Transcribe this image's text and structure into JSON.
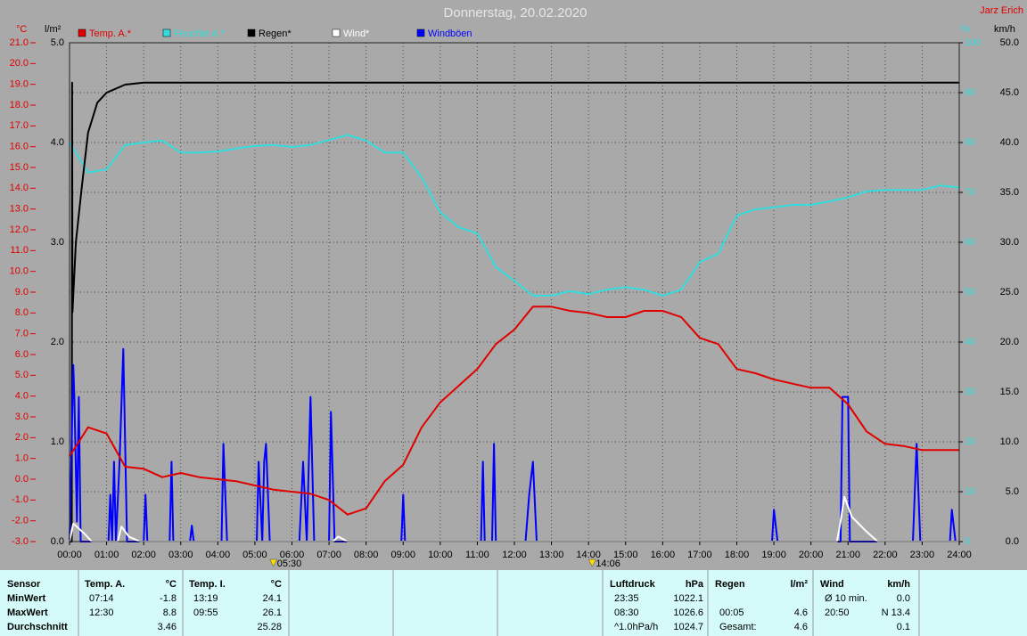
{
  "chart_data": {
    "type": "line",
    "title": "Donnerstag, 20.02.2020",
    "author": "Jarz Erich",
    "ylabel": "°C",
    "y2label": "l/m²",
    "y3label": "%",
    "y4label": "km/h",
    "legend": "top",
    "grid": true,
    "xlim": [
      0,
      24
    ],
    "xticks": [
      {
        "value": 0,
        "label": "00:00"
      },
      {
        "value": 1,
        "label": "01:00"
      },
      {
        "value": 2,
        "label": "02:00"
      },
      {
        "value": 3,
        "label": "03:00"
      },
      {
        "value": 4,
        "label": "04:00"
      },
      {
        "value": 5,
        "label": "05:00"
      },
      {
        "value": 6,
        "label": "06:00"
      },
      {
        "value": 7,
        "label": "07:00"
      },
      {
        "value": 8,
        "label": "08:00"
      },
      {
        "value": 9,
        "label": "09:00"
      },
      {
        "value": 10,
        "label": "10:00"
      },
      {
        "value": 11,
        "label": "11:00"
      },
      {
        "value": 12,
        "label": "12:00"
      },
      {
        "value": 13,
        "label": "13:00"
      },
      {
        "value": 14,
        "label": "14:00"
      },
      {
        "value": 15,
        "label": "15:00"
      },
      {
        "value": 16,
        "label": "16:00"
      },
      {
        "value": 17,
        "label": "17:00"
      },
      {
        "value": 18,
        "label": "18:00"
      },
      {
        "value": 19,
        "label": "19:00"
      },
      {
        "value": 20,
        "label": "20:00"
      },
      {
        "value": 21,
        "label": "21:00"
      },
      {
        "value": 22,
        "label": "22:00"
      },
      {
        "value": 23,
        "label": "23:00"
      },
      {
        "value": 24,
        "label": "24:00"
      }
    ],
    "ylim": [
      -3,
      21
    ],
    "yticks": [
      {
        "value": -3,
        "label": "-3.0"
      },
      {
        "value": -2,
        "label": "-2.0"
      },
      {
        "value": -1,
        "label": "-1.0"
      },
      {
        "value": 0,
        "label": "0.0"
      },
      {
        "value": 1,
        "label": "1.0"
      },
      {
        "value": 2,
        "label": "2.0"
      },
      {
        "value": 3,
        "label": "3.0"
      },
      {
        "value": 4,
        "label": "4.0"
      },
      {
        "value": 5,
        "label": "5.0"
      },
      {
        "value": 6,
        "label": "6.0"
      },
      {
        "value": 7,
        "label": "7.0"
      },
      {
        "value": 8,
        "label": "8.0"
      },
      {
        "value": 9,
        "label": "9.0"
      },
      {
        "value": 10,
        "label": "10.0"
      },
      {
        "value": 11,
        "label": "11.0"
      },
      {
        "value": 12,
        "label": "12.0"
      },
      {
        "value": 13,
        "label": "13.0"
      },
      {
        "value": 14,
        "label": "14.0"
      },
      {
        "value": 15,
        "label": "15.0"
      },
      {
        "value": 16,
        "label": "16.0"
      },
      {
        "value": 17,
        "label": "17.0"
      },
      {
        "value": 18,
        "label": "18.0"
      },
      {
        "value": 19,
        "label": "19.0"
      },
      {
        "value": 20,
        "label": "20.0"
      },
      {
        "value": 21,
        "label": "21.0"
      }
    ],
    "y2lim": [
      0,
      5
    ],
    "y2ticks": [
      {
        "value": 0,
        "label": "0.0"
      },
      {
        "value": 1,
        "label": "1.0"
      },
      {
        "value": 2,
        "label": "2.0"
      },
      {
        "value": 3,
        "label": "3.0"
      },
      {
        "value": 4,
        "label": "4.0"
      },
      {
        "value": 5,
        "label": "5.0"
      }
    ],
    "y3lim": [
      0,
      100
    ],
    "y3ticks": [
      0,
      10,
      20,
      30,
      40,
      50,
      60,
      70,
      80,
      90,
      100
    ],
    "y4lim": [
      0,
      50
    ],
    "y4ticks": [
      {
        "value": 0,
        "label": "0.0"
      },
      {
        "value": 5,
        "label": "5.0"
      },
      {
        "value": 10,
        "label": "10.0"
      },
      {
        "value": 15,
        "label": "15.0"
      },
      {
        "value": 20,
        "label": "20.0"
      },
      {
        "value": 25,
        "label": "25.0"
      },
      {
        "value": 30,
        "label": "30.0"
      },
      {
        "value": 35,
        "label": "35.0"
      },
      {
        "value": 40,
        "label": "40.0"
      },
      {
        "value": 45,
        "label": "45.0"
      },
      {
        "value": 50,
        "label": "50.0"
      }
    ],
    "series": [
      {
        "name": "Temp. A.*",
        "color": "#e00000",
        "axis": "y",
        "x": [
          0,
          0.5,
          1,
          1.5,
          2,
          2.5,
          3,
          3.5,
          4,
          4.5,
          5,
          5.5,
          6,
          6.5,
          7,
          7.5,
          8,
          8.5,
          9,
          9.5,
          10,
          10.5,
          11,
          11.5,
          12,
          12.5,
          13,
          13.5,
          14,
          14.5,
          15,
          15.5,
          16,
          16.5,
          17,
          17.5,
          18,
          18.5,
          19,
          19.5,
          20,
          20.5,
          21,
          21.5,
          22,
          22.5,
          23,
          23.5,
          24
        ],
        "values": [
          1.1,
          2.5,
          2.2,
          0.6,
          0.5,
          0.1,
          0.3,
          0.1,
          0.0,
          -0.1,
          -0.3,
          -0.5,
          -0.6,
          -0.7,
          -1.0,
          -1.7,
          -1.4,
          -0.1,
          0.7,
          2.5,
          3.7,
          4.5,
          5.3,
          6.5,
          7.2,
          8.3,
          8.3,
          8.1,
          8.0,
          7.8,
          7.8,
          8.1,
          8.1,
          7.8,
          6.8,
          6.5,
          5.3,
          5.1,
          4.8,
          4.6,
          4.4,
          4.4,
          3.6,
          2.3,
          1.7,
          1.6,
          1.4,
          1.4,
          1.4
        ]
      },
      {
        "name": "Feuchte A.*",
        "color": "#33dddd",
        "axis": "y3",
        "x": [
          0,
          0.5,
          1,
          1.5,
          2,
          2.5,
          3,
          3.5,
          4,
          4.5,
          5,
          5.5,
          6,
          6.5,
          7,
          7.5,
          8,
          8.5,
          9,
          9.5,
          10,
          10.5,
          11,
          11.5,
          12,
          12.5,
          13,
          13.5,
          14,
          14.5,
          15,
          15.5,
          16,
          16.5,
          17,
          17.5,
          18,
          18.5,
          19,
          19.5,
          20,
          20.5,
          21,
          21.5,
          22,
          22.5,
          23,
          23.5,
          24
        ],
        "values": [
          80,
          74,
          74.6,
          79.5,
          80,
          80.4,
          78,
          78,
          78.2,
          78.8,
          79.3,
          79.5,
          79.1,
          79.5,
          80.5,
          81.5,
          80.4,
          78,
          78,
          73,
          66,
          63,
          61.8,
          55,
          52.3,
          49.3,
          49.3,
          50.2,
          49.6,
          50.5,
          51,
          50.5,
          49.3,
          50.5,
          56,
          57.7,
          65.4,
          66.6,
          67,
          67.5,
          67.5,
          68.2,
          69,
          70.2,
          70.5,
          70.5,
          70.5,
          71.4,
          71
        ]
      },
      {
        "name": "Regen*",
        "color": "#000000",
        "axis": "y2",
        "x": [
          0,
          0.06,
          0.07,
          0.08,
          0.17,
          0.33,
          0.5,
          0.75,
          1,
          1.5,
          2,
          24
        ],
        "values": [
          0,
          0,
          4.6,
          2.3,
          3.0,
          3.55,
          4.1,
          4.4,
          4.5,
          4.58,
          4.6,
          4.6
        ]
      },
      {
        "name": "Wind*",
        "color": "#ffffff",
        "axis": "y4",
        "x": [
          0,
          0.1,
          0.4,
          0.6,
          1.3,
          1.4,
          1.6,
          1.9,
          7.1,
          7.25,
          7.5,
          20.7,
          20.8,
          20.9,
          21.1,
          21.5,
          21.8,
          24
        ],
        "values": [
          0,
          1.8,
          0.8,
          0,
          0,
          1.5,
          0.5,
          0,
          0,
          0.5,
          0,
          0,
          2,
          4.5,
          2.5,
          1,
          0,
          0
        ]
      },
      {
        "name": "Windböen",
        "color": "#0000ff",
        "axis": "y4",
        "x": [
          0,
          0.1,
          0.13,
          0.2,
          0.25,
          0.3,
          1.05,
          1.1,
          1.15,
          1.2,
          1.25,
          1.35,
          1.45,
          1.55,
          1.65,
          2.0,
          2.05,
          2.1,
          2.7,
          2.75,
          2.8,
          3.25,
          3.3,
          3.35,
          4.1,
          4.15,
          4.25,
          5.05,
          5.1,
          5.2,
          5.25,
          5.3,
          5.4,
          5.5,
          6.2,
          6.3,
          6.4,
          6.5,
          6.6,
          7.0,
          7.05,
          7.15,
          7.25,
          8.95,
          9.0,
          9.05,
          11.1,
          11.15,
          11.2,
          11.4,
          11.45,
          11.5,
          12.3,
          12.4,
          12.5,
          12.6,
          12.65,
          12.75,
          18.95,
          19.0,
          19.1,
          20.8,
          20.85,
          21.0,
          21.05,
          22.75,
          22.85,
          22.95,
          23.75,
          23.8,
          23.9,
          24
        ],
        "values": [
          0,
          17.7,
          14.5,
          2,
          14.5,
          0,
          0,
          4.7,
          0,
          8,
          0,
          8,
          19.3,
          0,
          0,
          0,
          4.7,
          0,
          0,
          8,
          0,
          0,
          1.6,
          0,
          0,
          9.8,
          0,
          0,
          8,
          0,
          8,
          9.8,
          0,
          0,
          0,
          8,
          0,
          14.5,
          0,
          0,
          13,
          0,
          0,
          0,
          4.7,
          0,
          0,
          8,
          0,
          0,
          9.8,
          0,
          0,
          4.7,
          8,
          0,
          0,
          0,
          0,
          3.2,
          0,
          0,
          14.5,
          14.5,
          0,
          0,
          9.8,
          0,
          0,
          3.2,
          0,
          0
        ]
      }
    ],
    "annotations": [
      {
        "x": 5.5,
        "label": "05:30"
      },
      {
        "x": 14.1,
        "label": "14:06"
      }
    ]
  },
  "summary": {
    "row_labels": [
      "Sensor",
      "MinWert",
      "MaxWert",
      "Durchschnitt"
    ],
    "groups": [
      {
        "name": "Temp. A.",
        "unit": "°C",
        "min": {
          "time": "07:14",
          "value": "-1.8"
        },
        "max": {
          "time": "12:30",
          "value": "8.8"
        },
        "avg": {
          "value": "3.46"
        }
      },
      {
        "name": "Temp. I.",
        "unit": "°C",
        "min": {
          "time": "13:19",
          "value": "24.1"
        },
        "max": {
          "time": "09:55",
          "value": "26.1"
        },
        "avg": {
          "value": "25.28"
        }
      },
      {
        "name": "Luftdruck",
        "unit": "hPa",
        "min": {
          "time": "23:35",
          "value": "1022.1"
        },
        "max": {
          "time": "08:30",
          "value": "1026.6"
        },
        "avg": {
          "time": "^1.0hPa/h",
          "value": "1024.7"
        }
      },
      {
        "name": "Regen",
        "unit": "l/m²",
        "max": {
          "time": "00:05",
          "value": "4.6"
        },
        "avg": {
          "time": "Gesamt:",
          "value": "4.6"
        }
      },
      {
        "name": "Wind",
        "unit": "km/h",
        "min": {
          "time": "Ø 10 min.",
          "value": "0.0"
        },
        "max": {
          "time": "20:50",
          "value": "N 13.4"
        },
        "avg": {
          "value": "0.1"
        }
      }
    ]
  }
}
